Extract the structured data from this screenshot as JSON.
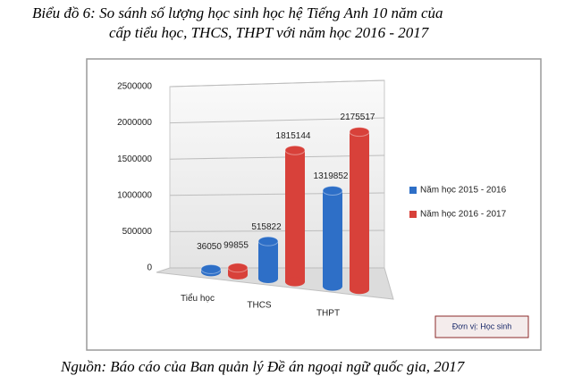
{
  "chart_data": {
    "type": "bar",
    "title": [
      "Biểu đồ 6: So sánh số lượng học sinh học hệ Tiếng Anh 10 năm của",
      "cấp tiểu học, THCS, THPT với năm học 2016 - 2017"
    ],
    "categories": [
      "Tiểu học",
      "THCS",
      "THPT"
    ],
    "series": [
      {
        "name": "Năm học 2015 - 2016",
        "color": "#2e6fc7",
        "values": [
          36050,
          515822,
          1319852
        ]
      },
      {
        "name": "Năm học 2016 - 2017",
        "color": "#d8413a",
        "values": [
          99855,
          1815144,
          2175517
        ]
      }
    ],
    "ylim": [
      0,
      2500000
    ],
    "yticks": [
      0,
      500000,
      1000000,
      1500000,
      2000000,
      2500000
    ],
    "grid": true,
    "legend": "right",
    "unit_note": "Đơn vị: Học sinh",
    "source": "Nguồn: Báo cáo của Ban quản lý Đề án ngoại ngữ quốc gia, 2017"
  }
}
